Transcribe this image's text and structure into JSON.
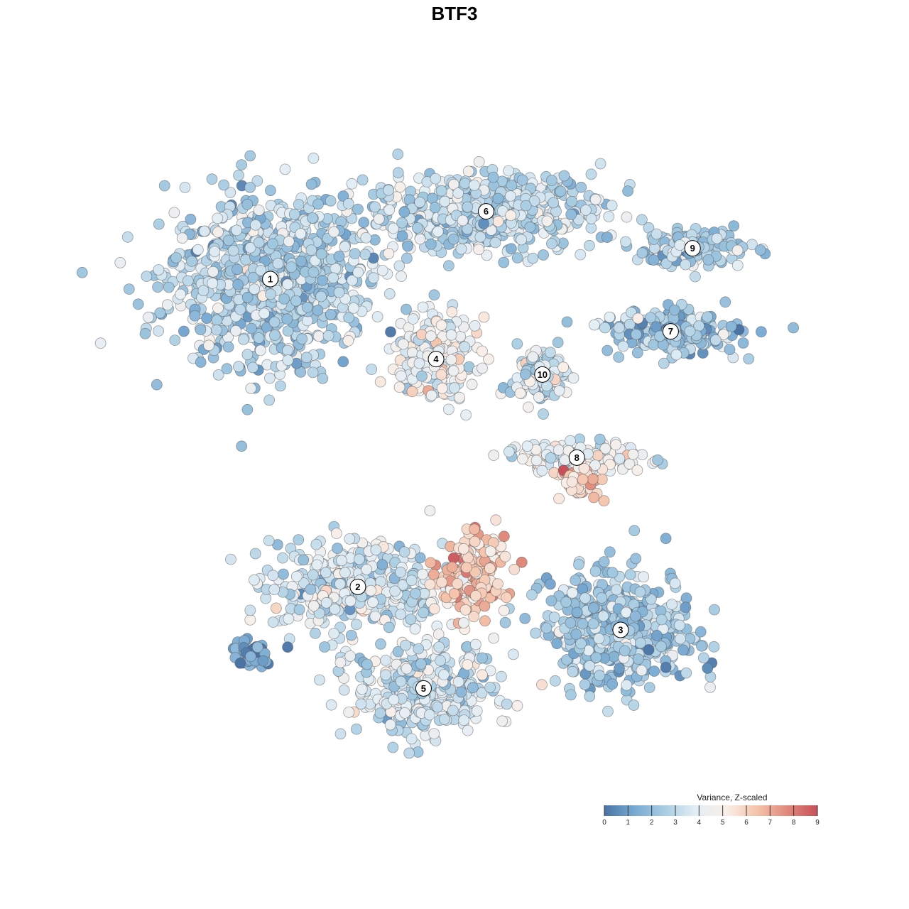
{
  "chart_data": {
    "type": "scatter",
    "title": "BTF3",
    "xlabel": "",
    "ylabel": "",
    "grid": false,
    "legend": {
      "title": "Variance, Z-scaled",
      "placement": "bottom-right",
      "range": [
        0,
        9
      ],
      "ticks": [
        "0",
        "1",
        "2",
        "3",
        "4",
        "5",
        "6",
        "7",
        "8",
        "9"
      ],
      "colors": [
        "#4a74a6",
        "#79aad2",
        "#a9cde3",
        "#e4eef5",
        "#f9efe9",
        "#f5c3ab",
        "#e08a7c",
        "#c94f5a"
      ]
    },
    "clusters": [
      {
        "label": "1",
        "x": -5.9,
        "y": 6.2,
        "spread_x": 3.2,
        "spread_y": 2.7,
        "mean": 2.8
      },
      {
        "label": "2",
        "x": -3.1,
        "y": -3.8,
        "spread_x": 2.7,
        "spread_y": 1.4,
        "mean": 3.5
      },
      {
        "label": "3",
        "x": 5.3,
        "y": -5.2,
        "spread_x": 2.4,
        "spread_y": 1.8,
        "mean": 2.4
      },
      {
        "label": "4",
        "x": -0.6,
        "y": 3.6,
        "spread_x": 1.3,
        "spread_y": 1.3,
        "mean": 4.3
      },
      {
        "label": "5",
        "x": -1.0,
        "y": -7.1,
        "spread_x": 2.2,
        "spread_y": 1.5,
        "mean": 3.4
      },
      {
        "label": "6",
        "x": 1.0,
        "y": 8.4,
        "spread_x": 3.8,
        "spread_y": 1.3,
        "mean": 3.1
      },
      {
        "label": "7",
        "x": 6.9,
        "y": 4.5,
        "spread_x": 2.2,
        "spread_y": 0.7,
        "mean": 2.2
      },
      {
        "label": "8",
        "x": 3.9,
        "y": 0.4,
        "spread_x": 2.3,
        "spread_y": 0.5,
        "mean": 4.2
      },
      {
        "label": "9",
        "x": 7.6,
        "y": 7.2,
        "spread_x": 1.8,
        "spread_y": 0.6,
        "mean": 2.9
      },
      {
        "label": "10",
        "x": 2.8,
        "y": 3.1,
        "spread_x": 0.8,
        "spread_y": 0.9,
        "mean": 3.6
      }
    ],
    "extra_groups": [
      {
        "x": -6.5,
        "y": -6.0,
        "spread_x": 0.7,
        "spread_y": 0.4,
        "mean": 1.0
      },
      {
        "x": 0.5,
        "y": -3.4,
        "spread_x": 1.1,
        "spread_y": 1.3,
        "mean": 6.2
      },
      {
        "x": 4.0,
        "y": -0.4,
        "spread_x": 0.6,
        "spread_y": 0.4,
        "mean": 6.0
      }
    ],
    "xlim": [
      -10,
      11
    ],
    "ylim": [
      -10,
      11
    ]
  }
}
